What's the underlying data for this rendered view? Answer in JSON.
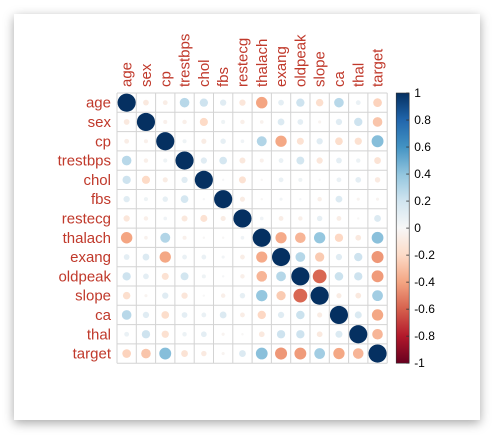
{
  "chart_data": {
    "type": "heatmap",
    "style": "circle-correlation-matrix",
    "variables": [
      "age",
      "sex",
      "cp",
      "trestbps",
      "chol",
      "fbs",
      "restecg",
      "thalach",
      "exang",
      "oldpeak",
      "slope",
      "ca",
      "thal",
      "target"
    ],
    "matrix": [
      [
        1.0,
        -0.1,
        -0.07,
        0.28,
        0.21,
        0.12,
        -0.12,
        -0.4,
        0.1,
        0.21,
        -0.17,
        0.28,
        0.07,
        -0.23
      ],
      [
        -0.1,
        1.0,
        -0.05,
        -0.06,
        -0.2,
        0.05,
        -0.06,
        -0.04,
        0.14,
        0.1,
        -0.03,
        0.12,
        0.21,
        -0.28
      ],
      [
        -0.07,
        -0.05,
        1.0,
        0.05,
        -0.08,
        0.09,
        0.04,
        0.3,
        -0.39,
        -0.15,
        0.12,
        -0.18,
        -0.16,
        0.43
      ],
      [
        0.28,
        -0.06,
        0.05,
        1.0,
        0.12,
        0.18,
        -0.11,
        -0.05,
        0.07,
        0.19,
        -0.12,
        0.1,
        0.06,
        -0.14
      ],
      [
        0.21,
        -0.2,
        -0.08,
        0.12,
        1.0,
        0.01,
        -0.15,
        -0.01,
        0.07,
        0.05,
        0.0,
        0.07,
        0.1,
        -0.09
      ],
      [
        0.12,
        0.05,
        0.09,
        0.18,
        0.01,
        1.0,
        -0.08,
        -0.01,
        0.03,
        0.01,
        -0.06,
        0.14,
        -0.03,
        -0.03
      ],
      [
        -0.12,
        -0.06,
        0.04,
        -0.11,
        -0.15,
        -0.08,
        1.0,
        0.04,
        -0.07,
        -0.06,
        0.09,
        -0.07,
        -0.01,
        0.14
      ],
      [
        -0.4,
        -0.04,
        0.3,
        -0.05,
        -0.01,
        -0.01,
        0.04,
        1.0,
        -0.38,
        -0.34,
        0.39,
        -0.21,
        -0.1,
        0.42
      ],
      [
        0.1,
        0.14,
        -0.39,
        0.07,
        0.07,
        0.03,
        -0.07,
        -0.38,
        1.0,
        0.29,
        -0.26,
        0.12,
        0.21,
        -0.44
      ],
      [
        0.21,
        0.1,
        -0.15,
        0.19,
        0.05,
        0.01,
        -0.06,
        -0.34,
        0.29,
        1.0,
        -0.58,
        0.22,
        0.21,
        -0.43
      ],
      [
        -0.17,
        -0.03,
        0.12,
        -0.12,
        0.0,
        -0.06,
        0.09,
        0.39,
        -0.26,
        -0.58,
        1.0,
        -0.08,
        -0.1,
        0.35
      ],
      [
        0.28,
        0.12,
        -0.18,
        0.1,
        0.07,
        0.14,
        -0.07,
        -0.21,
        0.12,
        0.22,
        -0.08,
        1.0,
        0.15,
        -0.39
      ],
      [
        0.07,
        0.21,
        -0.16,
        0.06,
        0.1,
        -0.03,
        -0.01,
        -0.1,
        0.21,
        0.21,
        -0.1,
        0.15,
        1.0,
        -0.34
      ],
      [
        -0.23,
        -0.28,
        0.43,
        -0.14,
        -0.09,
        -0.03,
        0.14,
        0.42,
        -0.44,
        -0.43,
        0.35,
        -0.39,
        -0.34,
        1.0
      ]
    ],
    "colorbar": {
      "range": [
        -1,
        1
      ],
      "ticks": [
        "1",
        "0.8",
        "0.6",
        "0.4",
        "0.2",
        "0",
        "-0.2",
        "-0.4",
        "-0.6",
        "-0.8",
        "-1"
      ],
      "colors": {
        "negative": "#67001f",
        "neutral": "#f7f7f7",
        "positive": "#053061"
      }
    },
    "label_color": "#c0392b"
  }
}
